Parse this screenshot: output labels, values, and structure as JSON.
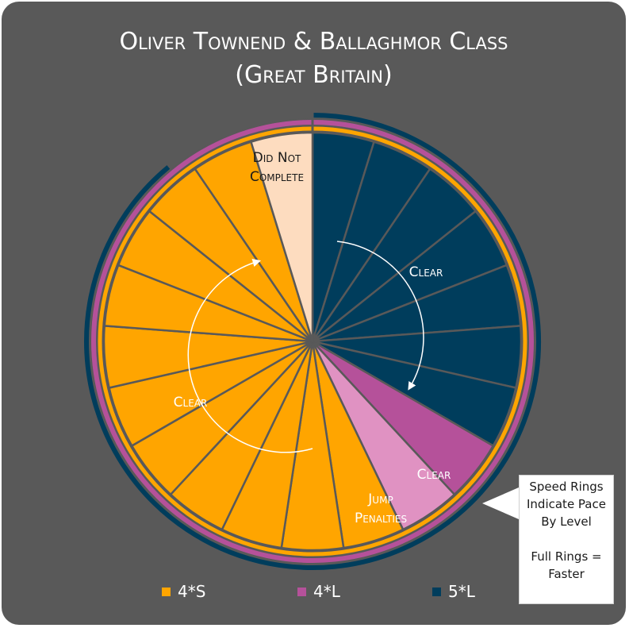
{
  "title": {
    "line1": "Oliver Townend & Ballaghmor Class",
    "line2": "(Great Britain)"
  },
  "colors": {
    "background": "#595959",
    "4*S": "#ffa500",
    "4*L": "#b5519a",
    "5*L": "#003d5c",
    "jump_penalties": "#e092c2",
    "did_not_complete": "#fddcbf",
    "divider": "#595959",
    "arrow": "#ffffff"
  },
  "chart_data": {
    "type": "pie",
    "start": "12 o'clock, clockwise",
    "slices": [
      {
        "group": "5*L",
        "label": "Clear",
        "count": 7,
        "color": "#003d5c"
      },
      {
        "group": "4*L",
        "label": "Clear",
        "count": 1,
        "color": "#b5519a"
      },
      {
        "group": "4*L",
        "label": "Jump Penalties",
        "count": 1,
        "color": "#e092c2"
      },
      {
        "group": "4*S",
        "label": "Clear",
        "count": 11,
        "color": "#ffa500"
      },
      {
        "group": "4*S",
        "label": "Did Not Complete",
        "count": 1,
        "color": "#fddcbf"
      }
    ],
    "speed_rings": [
      {
        "level": "4*S",
        "fraction": 1.0,
        "color": "#ffa500"
      },
      {
        "level": "4*L",
        "fraction": 1.0,
        "color": "#b5519a"
      },
      {
        "level": "5*L",
        "fraction": 0.89,
        "color": "#003d5c"
      }
    ],
    "legend": {
      "position": "bottom",
      "entries": [
        "4*S",
        "4*L",
        "5*L"
      ]
    }
  },
  "labels": {
    "clear_5l": "Clear",
    "clear_4l": "Clear",
    "jump_penalties_1": "Jump",
    "jump_penalties_2": "Penalties",
    "clear_4s": "Clear",
    "dnc_1": "Did Not",
    "dnc_2": "Complete"
  },
  "callout": {
    "line1": "Speed Rings",
    "line2": "Indicate Pace",
    "line3": "By Level",
    "line4": "Full Rings =",
    "line5": "Faster"
  },
  "legend": [
    {
      "label": "4*S",
      "color": "#ffa500"
    },
    {
      "label": "4*L",
      "color": "#b5519a"
    },
    {
      "label": "5*L",
      "color": "#003d5c"
    }
  ]
}
